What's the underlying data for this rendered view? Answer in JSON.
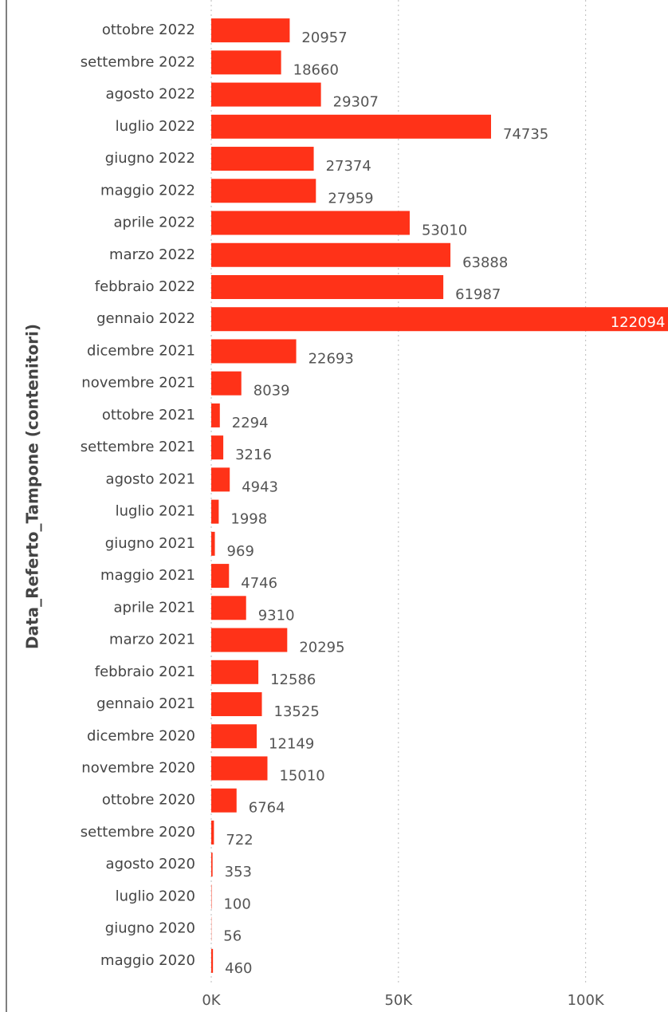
{
  "chart_data": {
    "type": "bar",
    "orientation": "horizontal",
    "y_axis_label": "Data_Referto_Tampone (contenitori)",
    "categories": [
      "ottobre 2022",
      "settembre 2022",
      "agosto 2022",
      "luglio 2022",
      "giugno 2022",
      "maggio 2022",
      "aprile 2022",
      "marzo 2022",
      "febbraio 2022",
      "gennaio 2022",
      "dicembre 2021",
      "novembre 2021",
      "ottobre 2021",
      "settembre 2021",
      "agosto 2021",
      "luglio 2021",
      "giugno 2021",
      "maggio 2021",
      "aprile 2021",
      "marzo 2021",
      "febbraio 2021",
      "gennaio 2021",
      "dicembre 2020",
      "novembre 2020",
      "ottobre 2020",
      "settembre 2020",
      "agosto 2020",
      "luglio 2020",
      "giugno 2020",
      "maggio 2020"
    ],
    "values": [
      20957,
      18660,
      29307,
      74735,
      27374,
      27959,
      53010,
      63888,
      61987,
      122094,
      22693,
      8039,
      2294,
      3216,
      4943,
      1998,
      969,
      4746,
      9310,
      20295,
      12586,
      13525,
      12149,
      15010,
      6764,
      722,
      353,
      100,
      56,
      460
    ],
    "color": "#ff3218",
    "xlim": [
      0,
      122000
    ],
    "xticks": [
      {
        "value": 0,
        "label": "0K"
      },
      {
        "value": 50000,
        "label": "50K"
      },
      {
        "value": 100000,
        "label": "100K"
      }
    ],
    "grid": true
  }
}
